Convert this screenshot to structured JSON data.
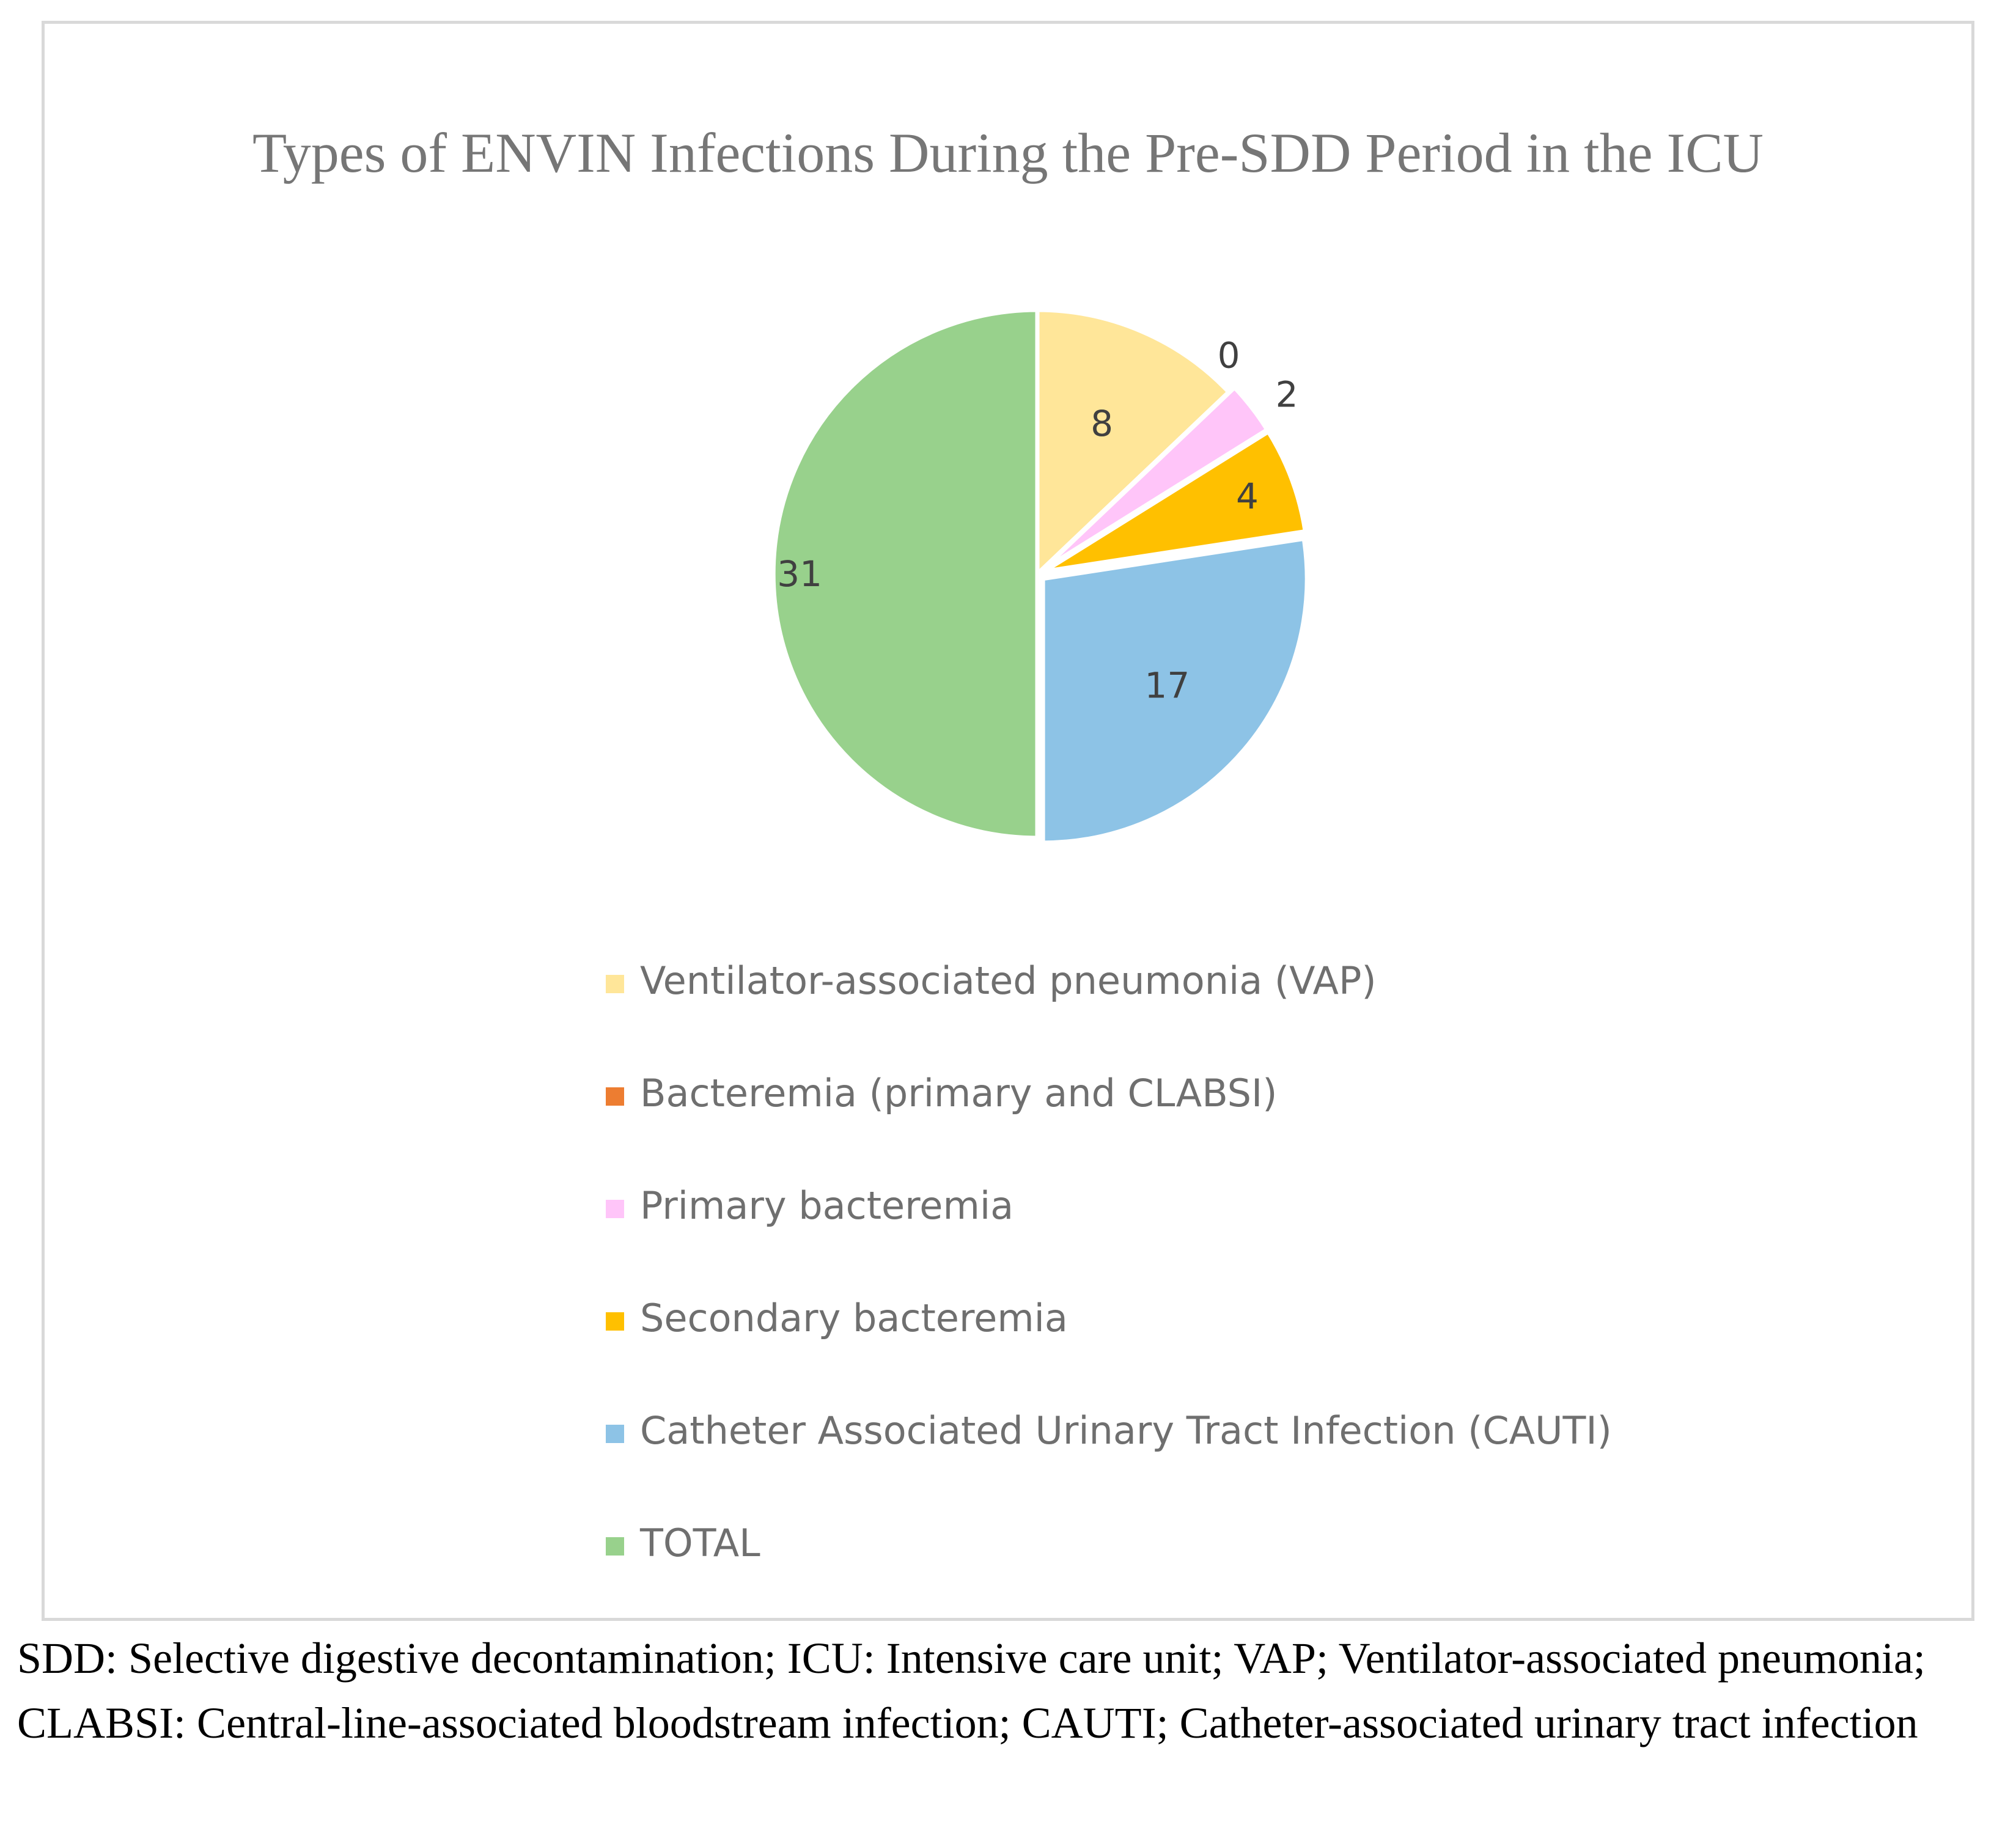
{
  "chart_data": {
    "type": "pie",
    "title": "Types of ENVIN Infections During the Pre-SDD Period in the ICU",
    "categories": [
      "Ventilator-associated pneumonia (VAP)",
      "Bacteremia (primary and CLABSI)",
      "Primary bacteremia",
      "Secondary bacteremia",
      "Catheter Associated Urinary Tract Infection (CAUTI)",
      "TOTAL"
    ],
    "values": [
      8,
      0,
      2,
      4,
      17,
      31
    ],
    "data_labels": [
      "8",
      "0",
      "2",
      "4",
      "17",
      "31"
    ],
    "colors": [
      "#FFE699",
      "#ED7D31",
      "#FFC5F9",
      "#FFC000",
      "#8DC3E6",
      "#98D18C"
    ],
    "legend_position": "bottom",
    "start_angle_deg": 0,
    "direction": "clockwise"
  },
  "caption": "SDD: Selective digestive decontamination; ICU: Intensive care unit; VAP; Ventilator-associated pneumonia; CLABSI: Central-line-associated bloodstream infection; CAUTI; Catheter-associated urinary tract infection"
}
